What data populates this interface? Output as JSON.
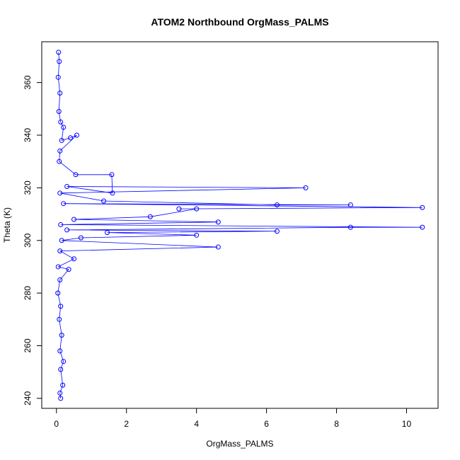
{
  "chart_data": {
    "type": "scatter",
    "title": "ATOM2 Northbound OrgMass_PALMS",
    "xlabel": "OrgMass_PALMS",
    "ylabel": "Theta (K)",
    "xlim": [
      -0.42,
      10.9
    ],
    "ylim": [
      236.2,
      375.5
    ],
    "x_ticks": [
      0,
      2,
      4,
      6,
      8,
      10
    ],
    "y_ticks": [
      240,
      260,
      280,
      300,
      320,
      340,
      360
    ],
    "marker": "open-circle",
    "connect_points": true,
    "grid": false,
    "legend": "none",
    "color": "#0000ff",
    "points": [
      {
        "x": 0.06,
        "y": 371.5
      },
      {
        "x": 0.08,
        "y": 368.0
      },
      {
        "x": 0.05,
        "y": 362.0
      },
      {
        "x": 0.1,
        "y": 356.0
      },
      {
        "x": 0.07,
        "y": 349.0
      },
      {
        "x": 0.12,
        "y": 345.0
      },
      {
        "x": 0.2,
        "y": 343.0
      },
      {
        "x": 0.15,
        "y": 338.0
      },
      {
        "x": 0.4,
        "y": 339.0
      },
      {
        "x": 0.58,
        "y": 340.0
      },
      {
        "x": 0.1,
        "y": 334.0
      },
      {
        "x": 0.08,
        "y": 330.0
      },
      {
        "x": 0.55,
        "y": 325.0
      },
      {
        "x": 1.58,
        "y": 325.0
      },
      {
        "x": 1.6,
        "y": 318.0
      },
      {
        "x": 0.3,
        "y": 320.5
      },
      {
        "x": 7.12,
        "y": 320.0
      },
      {
        "x": 0.1,
        "y": 318.0
      },
      {
        "x": 1.35,
        "y": 315.0
      },
      {
        "x": 6.3,
        "y": 313.5
      },
      {
        "x": 8.4,
        "y": 313.5
      },
      {
        "x": 0.2,
        "y": 314.0
      },
      {
        "x": 10.45,
        "y": 312.5
      },
      {
        "x": 3.5,
        "y": 312.0
      },
      {
        "x": 4.0,
        "y": 312.0
      },
      {
        "x": 2.68,
        "y": 309.0
      },
      {
        "x": 0.5,
        "y": 308.0
      },
      {
        "x": 4.62,
        "y": 307.0
      },
      {
        "x": 0.12,
        "y": 306.0
      },
      {
        "x": 10.45,
        "y": 305.0
      },
      {
        "x": 8.4,
        "y": 305.0
      },
      {
        "x": 0.3,
        "y": 304.0
      },
      {
        "x": 6.3,
        "y": 303.5
      },
      {
        "x": 1.45,
        "y": 303.0
      },
      {
        "x": 4.0,
        "y": 302.0
      },
      {
        "x": 0.7,
        "y": 301.0
      },
      {
        "x": 0.15,
        "y": 300.0
      },
      {
        "x": 4.62,
        "y": 297.5
      },
      {
        "x": 0.1,
        "y": 296.0
      },
      {
        "x": 0.5,
        "y": 293.0
      },
      {
        "x": 0.05,
        "y": 290.0
      },
      {
        "x": 0.35,
        "y": 289.0
      },
      {
        "x": 0.1,
        "y": 285.0
      },
      {
        "x": 0.04,
        "y": 280.0
      },
      {
        "x": 0.12,
        "y": 275.0
      },
      {
        "x": 0.08,
        "y": 270.0
      },
      {
        "x": 0.15,
        "y": 264.0
      },
      {
        "x": 0.1,
        "y": 258.0
      },
      {
        "x": 0.2,
        "y": 254.0
      },
      {
        "x": 0.12,
        "y": 251.0
      },
      {
        "x": 0.18,
        "y": 245.0
      },
      {
        "x": 0.1,
        "y": 242.0
      },
      {
        "x": 0.12,
        "y": 240.0
      }
    ]
  }
}
